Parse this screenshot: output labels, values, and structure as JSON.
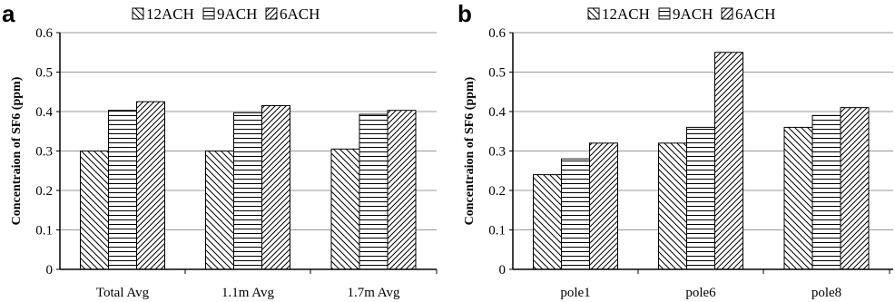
{
  "chart_data": [
    {
      "type": "bar",
      "panel_label": "a",
      "categories": [
        "Total Avg",
        "1.1m Avg",
        "1.7m Avg"
      ],
      "series": [
        {
          "name": "12ACH",
          "values": [
            0.3,
            0.3,
            0.305
          ],
          "pattern": "diag-back"
        },
        {
          "name": "9ACH",
          "values": [
            0.403,
            0.397,
            0.393
          ],
          "pattern": "horizontal"
        },
        {
          "name": "6ACH",
          "values": [
            0.425,
            0.415,
            0.403
          ],
          "pattern": "diag-fwd"
        }
      ],
      "ylabel": "Concentraion of SF6 (ppm)",
      "ylim": [
        0,
        0.6
      ],
      "yticks": [
        "0",
        "0.1",
        "0.2",
        "0.3",
        "0.4",
        "0.5",
        "0.6"
      ],
      "grid": true,
      "legend_position": "top"
    },
    {
      "type": "bar",
      "panel_label": "b",
      "categories": [
        "pole1",
        "pole6",
        "pole8"
      ],
      "series": [
        {
          "name": "12ACH",
          "values": [
            0.24,
            0.32,
            0.36
          ],
          "pattern": "diag-back"
        },
        {
          "name": "9ACH",
          "values": [
            0.28,
            0.36,
            0.39
          ],
          "pattern": "horizontal"
        },
        {
          "name": "6ACH",
          "values": [
            0.32,
            0.55,
            0.41
          ],
          "pattern": "diag-fwd"
        }
      ],
      "ylabel": "Concentraion of SF6 (ppm)",
      "ylim": [
        0,
        0.6
      ],
      "yticks": [
        "0",
        "0.1",
        "0.2",
        "0.3",
        "0.4",
        "0.5",
        "0.6"
      ],
      "grid": true,
      "legend_position": "top"
    }
  ]
}
